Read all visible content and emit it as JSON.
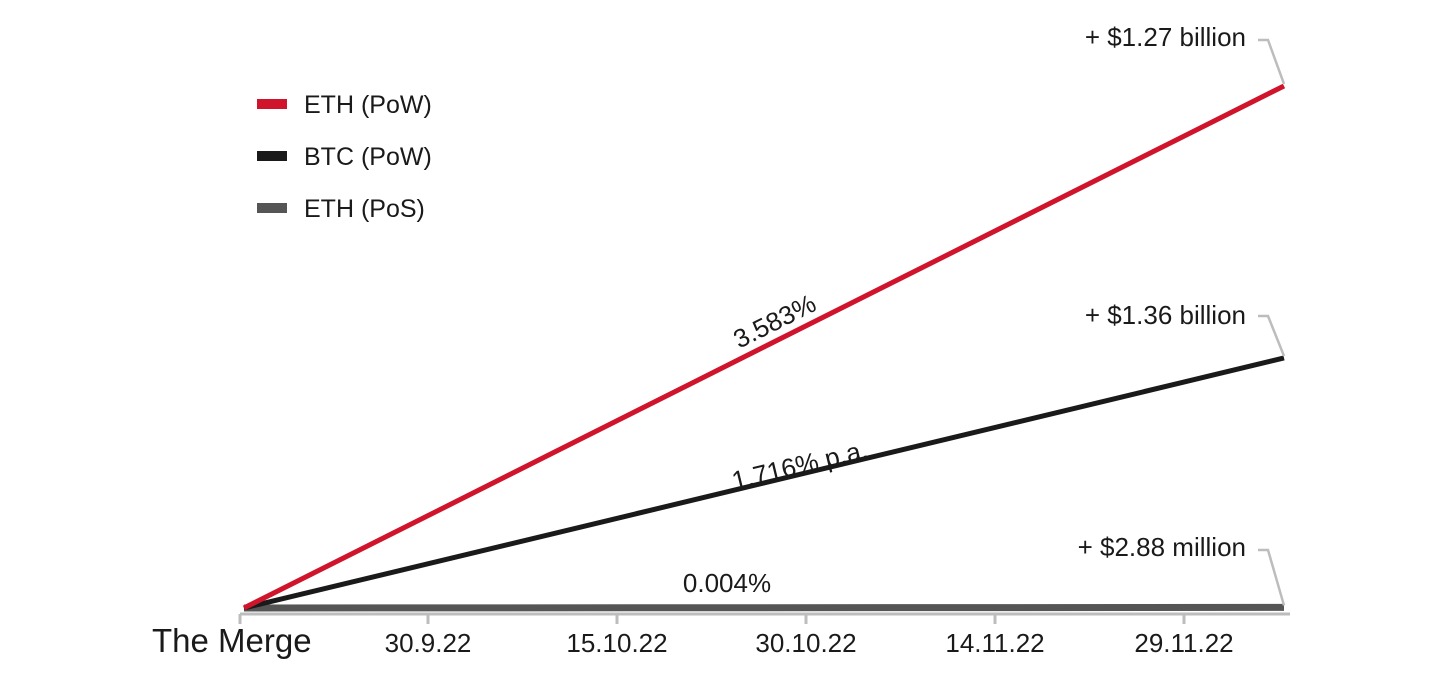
{
  "chart_data": {
    "type": "line",
    "title": "",
    "xlabel": "",
    "ylabel": "",
    "x_ticks": [
      "The Merge",
      "30.9.22",
      "15.10.22",
      "30.10.22",
      "14.11.22",
      "29.11.22"
    ],
    "x_range": [
      "15.9.22",
      "7.12.22"
    ],
    "grid": false,
    "legend_position": "top-left",
    "series": [
      {
        "name": "ETH (PoW)",
        "color": "#d0142c",
        "rate_label": "3.583%",
        "values": [
          0,
          3.583
        ],
        "end_label": "+ $1.27 billion"
      },
      {
        "name": "BTC (PoW)",
        "color": "#1a1a1a",
        "rate_label": "1.716% p.a.",
        "values": [
          0,
          1.716
        ],
        "end_label": "+ $1.36 billion"
      },
      {
        "name": "ETH (PoS)",
        "color": "#555555",
        "rate_label": "0.004%",
        "values": [
          0,
          0.004
        ],
        "end_label": "+ $2.88 million"
      }
    ],
    "axis_color": "#bdbdbd"
  }
}
